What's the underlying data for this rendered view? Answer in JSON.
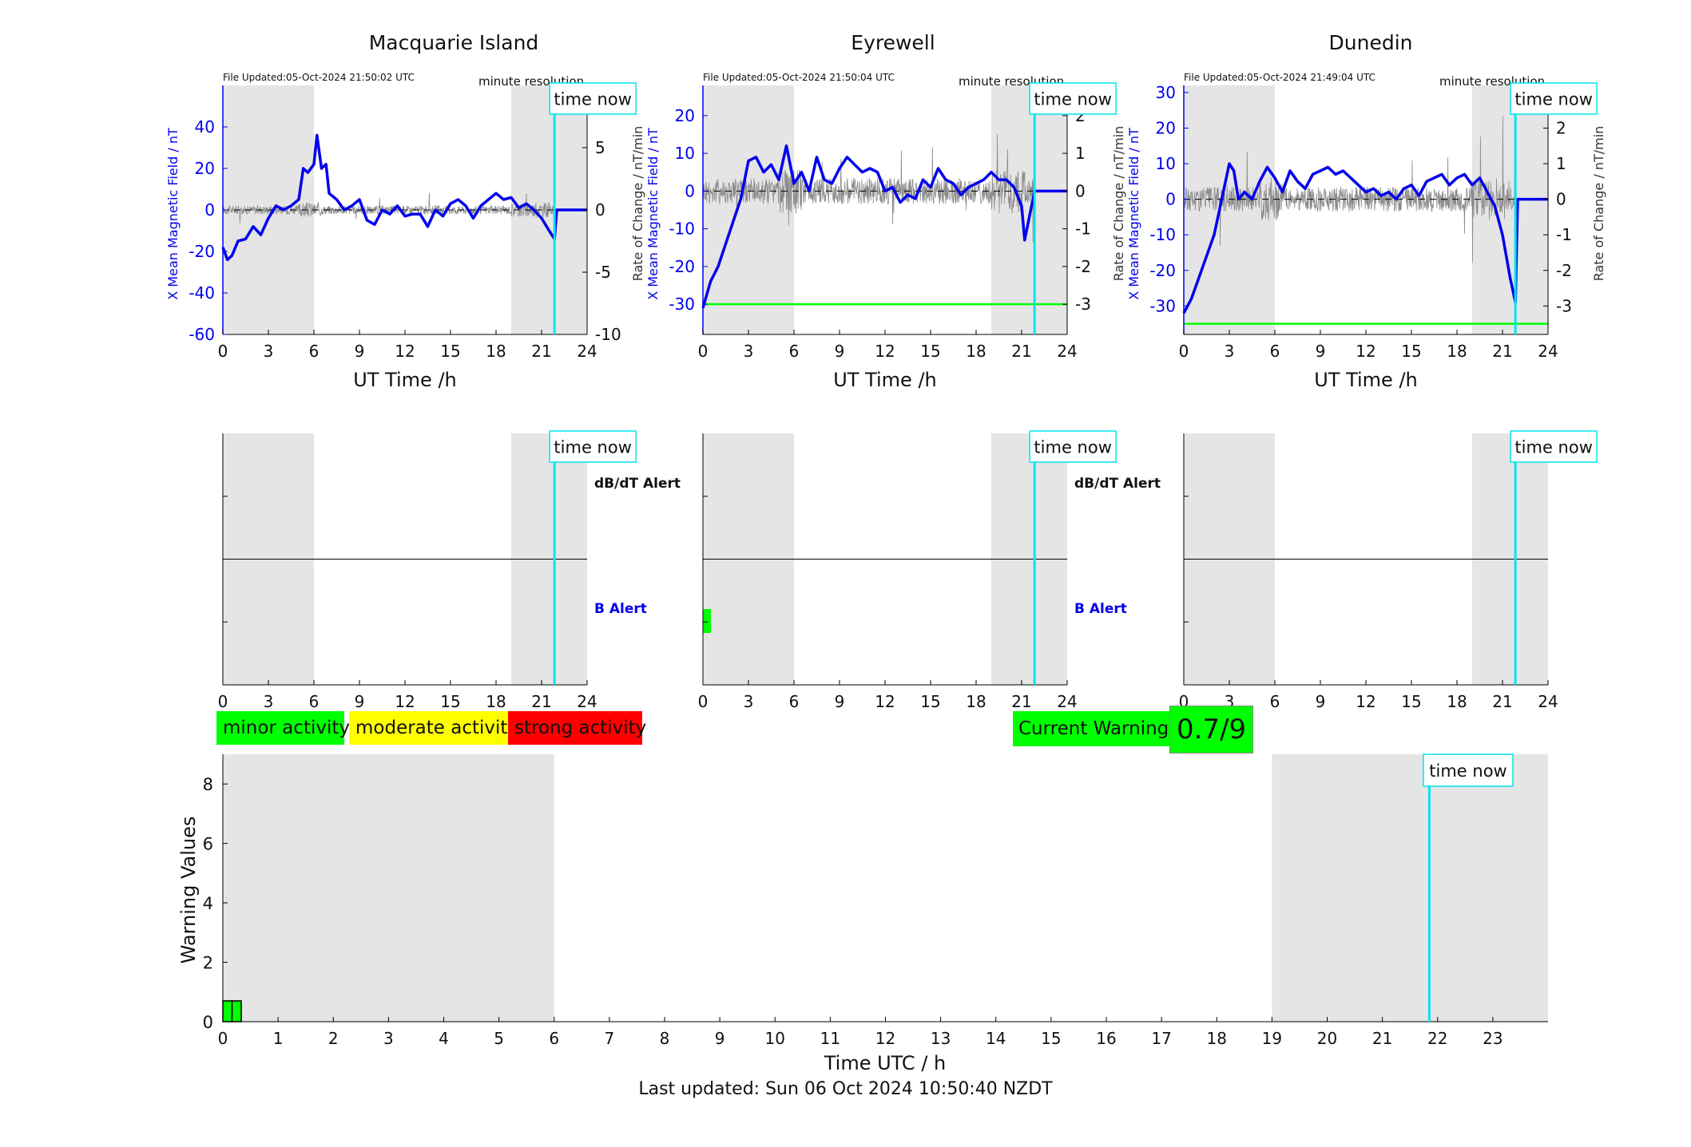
{
  "colors": {
    "field": "#0000ee",
    "rate": "#8a8a8a",
    "shade": "#e5e5e5",
    "now": "#00e5ee",
    "green": "#00ff00",
    "yellow": "#ffff00",
    "red": "#ff0000"
  },
  "stations": [
    {
      "name": "Macquarie Island",
      "file_updated": "File Updated:05-Oct-2024 21:50:02 UTC",
      "resolution": "minute resolution",
      "now_label": "time now",
      "xlabel": "UT Time /h",
      "ylabel_left": "X Mean Magnetic Field / nT",
      "ylabel_right": "Rate of Change / nT/min",
      "db_alert": "dB/dT Alert",
      "b_alert": "B Alert"
    },
    {
      "name": "Eyrewell",
      "file_updated": "File Updated:05-Oct-2024 21:50:04 UTC",
      "resolution": "minute resolution",
      "now_label": "time now",
      "xlabel": "UT Time /h",
      "ylabel_left": "X Mean Magnetic Field / nT",
      "ylabel_right": "Rate of Change / nT/min",
      "db_alert": "dB/dT Alert",
      "b_alert": "B Alert"
    },
    {
      "name": "Dunedin",
      "file_updated": "File Updated:05-Oct-2024 21:49:04 UTC",
      "resolution": "minute resolution",
      "now_label": "time now",
      "xlabel": "UT Time /h",
      "ylabel_left": "X Mean Magnetic Field / nT",
      "ylabel_right": "Rate of Change / nT/min",
      "db_alert": "",
      "b_alert": ""
    }
  ],
  "legend": {
    "minor": "minor activity",
    "moderate": "moderate activity",
    "strong": "strong activity"
  },
  "current_warning": {
    "label": "Current Warning:",
    "value": "0.7/9"
  },
  "footer": "Last updated: Sun 06 Oct 2024 10:50:40 NZDT",
  "chart_data": [
    {
      "type": "line",
      "title": "Macquarie Island",
      "xlabel": "UT Time /h",
      "ylabel": "X Mean Magnetic Field / nT",
      "y2label": "Rate of Change / nT/min",
      "xlim": [
        0,
        24
      ],
      "ylim": [
        -60,
        60
      ],
      "y2lim": [
        -10,
        10
      ],
      "xticks": [
        0,
        3,
        6,
        9,
        12,
        15,
        18,
        21,
        24
      ],
      "yticks": [
        -60,
        -40,
        -20,
        0,
        20,
        40
      ],
      "y2ticks": [
        -10,
        -5,
        0,
        5
      ],
      "shaded_hours": [
        [
          0,
          6
        ],
        [
          19,
          24
        ]
      ],
      "time_now": 21.85,
      "threshold": null,
      "series": [
        {
          "x": [
            0,
            0.3,
            0.6,
            1,
            1.5,
            2,
            2.5,
            3,
            3.5,
            4,
            4.5,
            5,
            5.3,
            5.6,
            6,
            6.2,
            6.5,
            6.8,
            7,
            7.5,
            8,
            8.5,
            9,
            9.5,
            10,
            10.5,
            11,
            11.5,
            12,
            12.5,
            13,
            13.5,
            14,
            14.5,
            15,
            15.5,
            16,
            16.5,
            17,
            17.5,
            18,
            18.5,
            19,
            19.5,
            20,
            20.5,
            21,
            21.5,
            21.85,
            22,
            23,
            24
          ],
          "y": [
            -18,
            -24,
            -22,
            -15,
            -14,
            -8,
            -12,
            -4,
            2,
            0,
            2,
            5,
            20,
            18,
            22,
            36,
            20,
            22,
            8,
            5,
            0,
            2,
            5,
            -5,
            -7,
            0,
            -2,
            2,
            -3,
            -2,
            -2,
            -8,
            0,
            -3,
            3,
            5,
            2,
            -4,
            2,
            5,
            8,
            5,
            6,
            1,
            3,
            0,
            -4,
            -10,
            -14,
            0,
            0,
            0
          ]
        }
      ]
    },
    {
      "type": "line",
      "title": "Eyrewell",
      "xlabel": "UT Time /h",
      "ylabel": "X Mean Magnetic Field / nT",
      "y2label": "Rate of Change / nT/min",
      "xlim": [
        0,
        24
      ],
      "ylim": [
        -38,
        28
      ],
      "y2lim": [
        -3.8,
        2.8
      ],
      "xticks": [
        0,
        3,
        6,
        9,
        12,
        15,
        18,
        21,
        24
      ],
      "yticks": [
        -30,
        -20,
        -10,
        0,
        10,
        20
      ],
      "y2ticks": [
        -3,
        -2,
        -1,
        0,
        1,
        2
      ],
      "shaded_hours": [
        [
          0,
          6
        ],
        [
          19,
          24
        ]
      ],
      "time_now": 21.85,
      "threshold": -30,
      "series": [
        {
          "x": [
            0,
            0.5,
            1,
            1.5,
            2,
            2.5,
            3,
            3.5,
            4,
            4.5,
            5,
            5.5,
            6,
            6.5,
            7,
            7.5,
            8,
            8.5,
            9,
            9.5,
            10,
            10.5,
            11,
            11.5,
            12,
            12.5,
            13,
            13.5,
            14,
            14.5,
            15,
            15.5,
            16,
            16.5,
            17,
            17.5,
            18,
            18.5,
            19,
            19.5,
            20,
            20.5,
            21,
            21.2,
            21.85,
            24
          ],
          "y": [
            -31,
            -24,
            -20,
            -14,
            -8,
            -2,
            8,
            9,
            5,
            7,
            3,
            12,
            2,
            5,
            0,
            9,
            3,
            2,
            6,
            9,
            7,
            5,
            6,
            5,
            0,
            1,
            -3,
            -1,
            -2,
            3,
            1,
            6,
            3,
            2,
            -1,
            1,
            2,
            3,
            5,
            3,
            3,
            1,
            -4,
            -13,
            0,
            0
          ]
        }
      ]
    },
    {
      "type": "line",
      "title": "Dunedin",
      "xlabel": "UT Time /h",
      "ylabel": "X Mean Magnetic Field / nT",
      "y2label": "Rate of Change / nT/min",
      "xlim": [
        0,
        24
      ],
      "ylim": [
        -38,
        32
      ],
      "y2lim": [
        -3.8,
        3.2
      ],
      "xticks": [
        0,
        3,
        6,
        9,
        12,
        15,
        18,
        21,
        24
      ],
      "yticks": [
        -30,
        -20,
        -10,
        0,
        10,
        20,
        30
      ],
      "y2ticks": [
        -3,
        -2,
        -1,
        0,
        1,
        2,
        3
      ],
      "shaded_hours": [
        [
          0,
          6
        ],
        [
          19,
          24
        ]
      ],
      "time_now": 21.85,
      "threshold": -35,
      "series": [
        {
          "x": [
            0,
            0.5,
            1,
            1.5,
            2,
            2.5,
            3,
            3.3,
            3.6,
            4,
            4.5,
            5,
            5.5,
            6,
            6.5,
            7,
            7.5,
            8,
            8.5,
            9,
            9.5,
            10,
            10.5,
            11,
            11.5,
            12,
            12.5,
            13,
            13.5,
            14,
            14.5,
            15,
            15.5,
            16,
            16.5,
            17,
            17.5,
            18,
            18.5,
            19,
            19.5,
            20,
            20.5,
            21,
            21.5,
            21.85,
            22,
            24
          ],
          "y": [
            -32,
            -28,
            -22,
            -16,
            -10,
            0,
            10,
            8,
            0,
            2,
            0,
            5,
            9,
            6,
            2,
            8,
            5,
            3,
            7,
            8,
            9,
            7,
            8,
            6,
            4,
            2,
            3,
            1,
            2,
            0,
            3,
            4,
            1,
            5,
            6,
            7,
            4,
            6,
            7,
            4,
            6,
            2,
            -2,
            -10,
            -22,
            -29,
            0,
            0
          ]
        }
      ]
    },
    {
      "type": "bar",
      "title": "",
      "xlabel": "Time UTC / h",
      "ylabel": "Warning Values",
      "xlim": [
        0,
        24
      ],
      "ylim": [
        0,
        9
      ],
      "xticks": [
        0,
        1,
        2,
        3,
        4,
        5,
        6,
        7,
        8,
        9,
        10,
        11,
        12,
        13,
        14,
        15,
        16,
        17,
        18,
        19,
        20,
        21,
        22,
        23
      ],
      "yticks": [
        0,
        2,
        4,
        6,
        8
      ],
      "shaded_hours": [
        [
          0,
          6
        ],
        [
          19,
          24
        ]
      ],
      "time_now": 21.85,
      "categories": [
        0.083,
        0.25
      ],
      "values": [
        0.7,
        0.7
      ]
    }
  ]
}
